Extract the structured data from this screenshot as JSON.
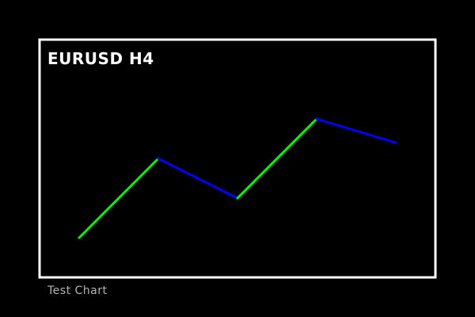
{
  "chart_data": {
    "type": "line",
    "title": "EURUSD H4",
    "x": [
      1,
      2,
      3,
      4,
      5
    ],
    "values": [
      1,
      2,
      1.5,
      2.5,
      2.2
    ],
    "segment_colors": [
      "#00ff00",
      "#0000ff",
      "#00ff00",
      "#0000ff"
    ],
    "xlim": [
      0.5,
      5.5
    ],
    "ylim": [
      0.5,
      3.5
    ],
    "grid": false,
    "legend": "none"
  },
  "caption": "Test Chart",
  "colors": {
    "background": "#000000",
    "frame": "#ffffff",
    "up_segment": "#00ff00",
    "down_segment": "#0000ff",
    "title_text": "#ffffff",
    "caption_text": "#b4b4b4"
  }
}
